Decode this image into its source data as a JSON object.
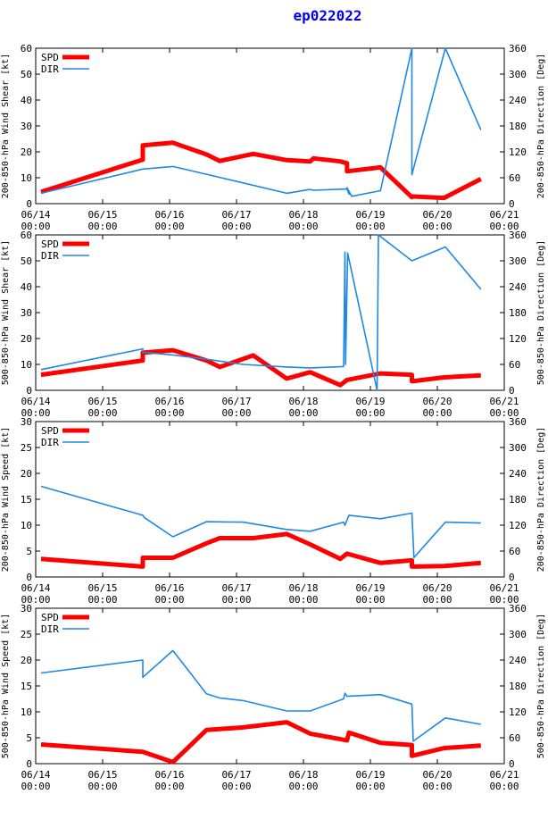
{
  "title": "ep022022",
  "colors": {
    "spd": "#ff0000",
    "dir": "#1e88e5",
    "axis": "#000000"
  },
  "legend": {
    "spd": "SPD",
    "dir": "DIR"
  },
  "x_ticks": [
    {
      "day": 0,
      "date": "06/14",
      "time": "00:00"
    },
    {
      "day": 1,
      "date": "06/15",
      "time": "00:00"
    },
    {
      "day": 2,
      "date": "06/16",
      "time": "00:00"
    },
    {
      "day": 3,
      "date": "06/17",
      "time": "00:00"
    },
    {
      "day": 4,
      "date": "06/18",
      "time": "00:00"
    },
    {
      "day": 5,
      "date": "06/19",
      "time": "00:00"
    },
    {
      "day": 6,
      "date": "06/20",
      "time": "00:00"
    },
    {
      "day": 7,
      "date": "06/21",
      "time": "00:00"
    }
  ],
  "chart_data": [
    {
      "type": "line",
      "title": "",
      "xlabel": "",
      "ylabel": "200-850-hPa Wind Shear [kt]",
      "y2label": "200-850-hPa Direction [Deg]",
      "ylim": [
        0,
        60
      ],
      "yticks": [
        0,
        10,
        20,
        30,
        40,
        50,
        60
      ],
      "y2lim": [
        0,
        360
      ],
      "y2ticks": [
        0,
        60,
        120,
        180,
        240,
        300,
        360
      ],
      "xlim": [
        0,
        7
      ],
      "series": [
        {
          "name": "SPD",
          "axis": "left",
          "points": [
            [
              0.08,
              4.5
            ],
            [
              1.6,
              17
            ],
            [
              1.6,
              22.5
            ],
            [
              2.05,
              23.5
            ],
            [
              2.55,
              19
            ],
            [
              2.75,
              16.5
            ],
            [
              3.25,
              19.2
            ],
            [
              3.75,
              16.8
            ],
            [
              4.1,
              16.3
            ],
            [
              4.15,
              17.5
            ],
            [
              4.55,
              16.3
            ],
            [
              4.65,
              15.6
            ],
            [
              4.65,
              12.5
            ],
            [
              5.15,
              14
            ],
            [
              5.62,
              2.5
            ],
            [
              5.62,
              2.8
            ],
            [
              6.1,
              2.2
            ],
            [
              6.65,
              9.5
            ]
          ]
        },
        {
          "name": "DIR",
          "axis": "right",
          "points": [
            [
              0.08,
              24
            ],
            [
              1.6,
              80
            ],
            [
              2.05,
              86
            ],
            [
              2.55,
              68
            ],
            [
              3.1,
              48
            ],
            [
              3.75,
              24
            ],
            [
              4.1,
              33
            ],
            [
              4.15,
              31
            ],
            [
              4.65,
              34
            ],
            [
              4.68,
              22
            ],
            [
              4.65,
              37
            ],
            [
              4.72,
              17
            ],
            [
              5.15,
              30
            ],
            [
              5.62,
              360
            ],
            [
              5.62,
              67
            ],
            [
              6.12,
              360
            ],
            [
              6.65,
              171
            ]
          ]
        }
      ]
    },
    {
      "type": "line",
      "title": "",
      "xlabel": "",
      "ylabel": "500-850-hPa Wind Shear [kt]",
      "y2label": "500-850-hPa Direction [Deg]",
      "ylim": [
        0,
        60
      ],
      "yticks": [
        0,
        10,
        20,
        30,
        40,
        50,
        60
      ],
      "y2lim": [
        0,
        360
      ],
      "y2ticks": [
        0,
        60,
        120,
        180,
        240,
        300,
        360
      ],
      "xlim": [
        0,
        7
      ],
      "series": [
        {
          "name": "SPD",
          "axis": "left",
          "points": [
            [
              0.08,
              6
            ],
            [
              1.6,
              11.5
            ],
            [
              1.6,
              14.5
            ],
            [
              2.05,
              15.5
            ],
            [
              2.55,
              11.5
            ],
            [
              2.75,
              9
            ],
            [
              3.25,
              13.5
            ],
            [
              3.75,
              4.5
            ],
            [
              4.1,
              7
            ],
            [
              4.55,
              2
            ],
            [
              4.65,
              4
            ],
            [
              5.15,
              6.5
            ],
            [
              5.62,
              6
            ],
            [
              5.62,
              3.5
            ],
            [
              6.1,
              5
            ],
            [
              6.65,
              5.8
            ]
          ]
        },
        {
          "name": "DIR",
          "axis": "right",
          "points": [
            [
              0.08,
              48
            ],
            [
              1.6,
              96
            ],
            [
              1.6,
              88
            ],
            [
              2.05,
              82
            ],
            [
              2.55,
              72
            ],
            [
              3.1,
              60
            ],
            [
              3.75,
              54
            ],
            [
              4.1,
              52
            ],
            [
              4.6,
              55
            ],
            [
              4.62,
              320
            ],
            [
              4.63,
              60
            ],
            [
              4.66,
              318
            ],
            [
              5.1,
              0
            ],
            [
              5.12,
              360
            ],
            [
              5.62,
              300
            ],
            [
              6.12,
              332
            ],
            [
              6.65,
              234
            ]
          ]
        }
      ]
    },
    {
      "type": "line",
      "title": "",
      "xlabel": "",
      "ylabel": "200-850-hPa Wind Speed [kt]",
      "y2label": "200-850-hPa Direction [Deg]",
      "ylim": [
        0,
        30
      ],
      "yticks": [
        0,
        5,
        10,
        15,
        20,
        25,
        30
      ],
      "y2lim": [
        0,
        360
      ],
      "y2ticks": [
        0,
        60,
        120,
        180,
        240,
        300,
        360
      ],
      "xlim": [
        0,
        7
      ],
      "series": [
        {
          "name": "SPD",
          "axis": "left",
          "points": [
            [
              0.08,
              3.5
            ],
            [
              1.6,
              2
            ],
            [
              1.6,
              3.7
            ],
            [
              2.05,
              3.7
            ],
            [
              2.55,
              6.5
            ],
            [
              2.75,
              7.5
            ],
            [
              3.25,
              7.5
            ],
            [
              3.75,
              8.3
            ],
            [
              4.1,
              6.3
            ],
            [
              4.55,
              3.5
            ],
            [
              4.65,
              4.5
            ],
            [
              5.15,
              2.7
            ],
            [
              5.62,
              3.2
            ],
            [
              5.62,
              2
            ],
            [
              6.1,
              2.1
            ],
            [
              6.65,
              2.7
            ]
          ]
        },
        {
          "name": "DIR",
          "axis": "right",
          "points": [
            [
              0.08,
              210
            ],
            [
              1.6,
              143
            ],
            [
              1.62,
              138
            ],
            [
              2.05,
              93
            ],
            [
              2.55,
              128
            ],
            [
              3.1,
              127
            ],
            [
              3.75,
              110
            ],
            [
              4.1,
              106
            ],
            [
              4.6,
              127
            ],
            [
              4.62,
              120
            ],
            [
              4.68,
              143
            ],
            [
              5.15,
              135
            ],
            [
              5.62,
              148
            ],
            [
              5.65,
              45
            ],
            [
              6.12,
              127
            ],
            [
              6.65,
              125
            ]
          ]
        }
      ]
    },
    {
      "type": "line",
      "title": "",
      "xlabel": "",
      "ylabel": "500-850-hPa Wind Speed [kt]",
      "y2label": "500-850-hPa Direction [Deg]",
      "ylim": [
        0,
        30
      ],
      "yticks": [
        0,
        5,
        10,
        15,
        20,
        25,
        30
      ],
      "y2lim": [
        0,
        360
      ],
      "y2ticks": [
        0,
        60,
        120,
        180,
        240,
        300,
        360
      ],
      "xlim": [
        0,
        7
      ],
      "series": [
        {
          "name": "SPD",
          "axis": "left",
          "points": [
            [
              0.08,
              3.7
            ],
            [
              1.6,
              2.3
            ],
            [
              2.05,
              0.3
            ],
            [
              2.55,
              6.5
            ],
            [
              3.1,
              7
            ],
            [
              3.75,
              8
            ],
            [
              4.1,
              5.8
            ],
            [
              4.65,
              4.5
            ],
            [
              4.68,
              6
            ],
            [
              5.15,
              4
            ],
            [
              5.62,
              3.6
            ],
            [
              5.62,
              1.5
            ],
            [
              6.1,
              3
            ],
            [
              6.65,
              3.5
            ]
          ]
        },
        {
          "name": "DIR",
          "axis": "right",
          "points": [
            [
              0.08,
              210
            ],
            [
              1.6,
              240
            ],
            [
              1.6,
              200
            ],
            [
              2.05,
              262
            ],
            [
              2.55,
              162
            ],
            [
              2.75,
              152
            ],
            [
              3.1,
              146
            ],
            [
              3.75,
              122
            ],
            [
              4.1,
              122
            ],
            [
              4.6,
              150
            ],
            [
              4.62,
              163
            ],
            [
              4.65,
              156
            ],
            [
              5.15,
              160
            ],
            [
              5.62,
              138
            ],
            [
              5.64,
              52
            ],
            [
              6.12,
              106
            ],
            [
              6.65,
              91
            ]
          ]
        }
      ]
    }
  ]
}
